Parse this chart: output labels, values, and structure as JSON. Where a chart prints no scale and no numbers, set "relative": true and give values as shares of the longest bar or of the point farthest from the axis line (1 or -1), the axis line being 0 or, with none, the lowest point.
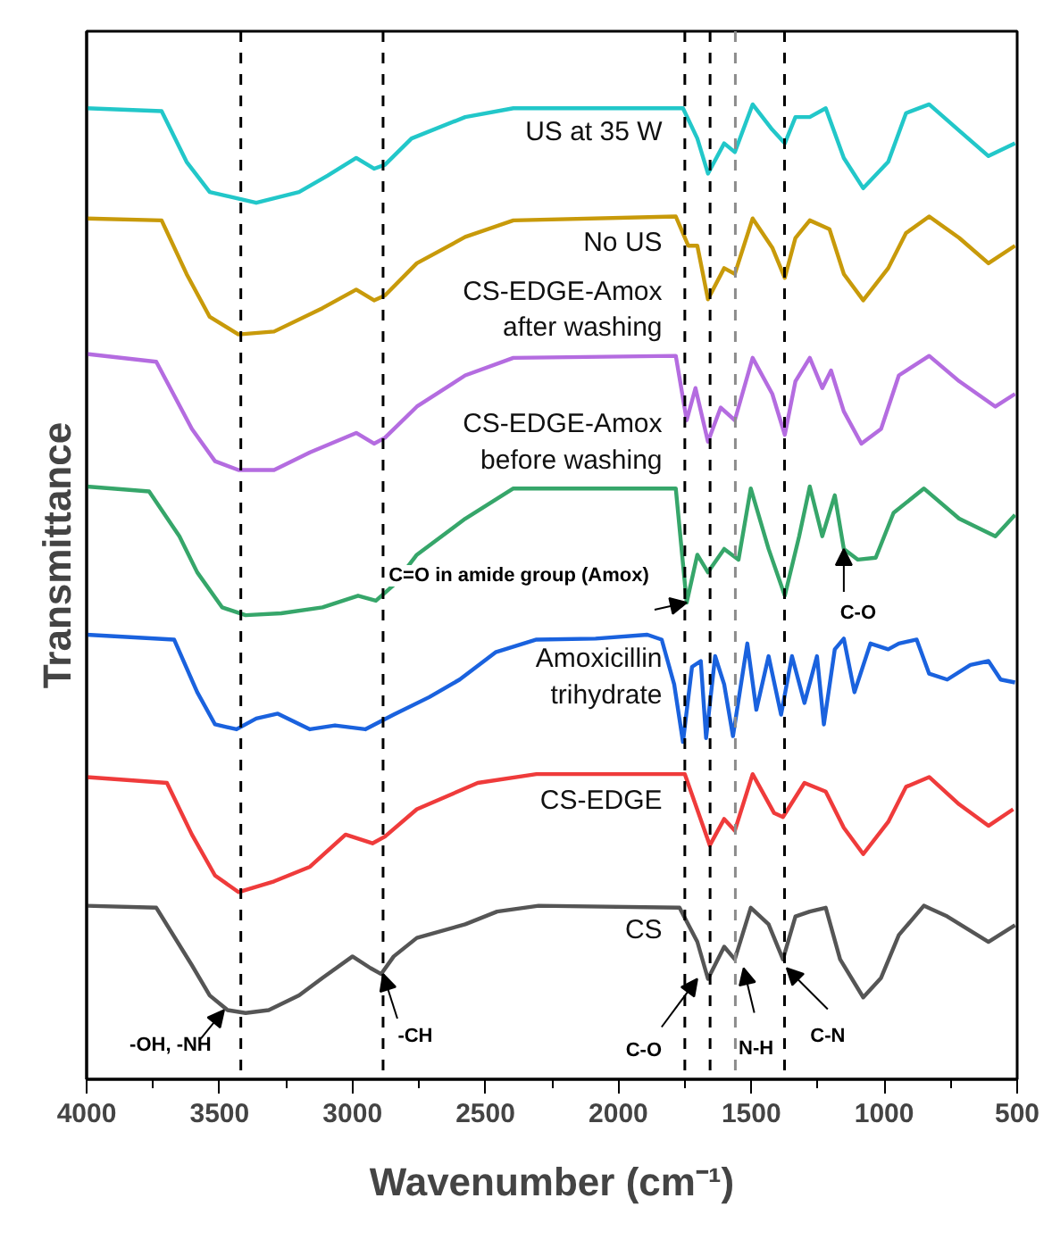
{
  "chart_data": {
    "type": "line",
    "relative": true,
    "xlabel": "Wavenumber (cm⁻¹)",
    "ylabel": "Transmittance",
    "xlim": [
      4000,
      500
    ],
    "xticks": [
      4000,
      3500,
      3000,
      2500,
      2000,
      1500,
      1000,
      500
    ],
    "grid": false,
    "legend": false,
    "ref_lines": [
      {
        "axis": "x",
        "value": 3420,
        "color": "#000000",
        "line_style": "dashed"
      },
      {
        "axis": "x",
        "value": 2885,
        "color": "#000000",
        "line_style": "dashed"
      },
      {
        "axis": "x",
        "value": 1750,
        "color": "#000000",
        "line_style": "dashed"
      },
      {
        "axis": "x",
        "value": 1655,
        "color": "#000000",
        "line_style": "dashed"
      },
      {
        "axis": "x",
        "value": 1560,
        "color": "#8c8c8c",
        "line_style": "dashed"
      },
      {
        "axis": "x",
        "value": 1375,
        "color": "#000000",
        "line_style": "dashed"
      }
    ],
    "annotations": [
      {
        "text": "-OH, -NH",
        "x": 3483,
        "y": 0.071
      },
      {
        "text": "-CH",
        "x": 2885,
        "y": 0.108
      },
      {
        "text": "C=O in amide group (Amox)",
        "x": 1743,
        "y": 0.489
      },
      {
        "text": "C-O",
        "x": 1703,
        "y": 0.103
      },
      {
        "text": "N-H",
        "x": 1529,
        "y": 0.114
      },
      {
        "text": "C-N",
        "x": 1367,
        "y": 0.114
      },
      {
        "text": "C-O",
        "x": 1152,
        "y": 0.544
      }
    ],
    "series": [
      {
        "name": "US at 35 W",
        "color": "#22c7c9",
        "x": [
          4000,
          3718,
          3624,
          3537,
          3362,
          3201,
          3093,
          2986,
          2919,
          2878,
          2778,
          2576,
          2395,
          1757,
          1703,
          1663,
          1602,
          1562,
          1495,
          1421,
          1374,
          1334,
          1280,
          1220,
          1152,
          1079,
          985,
          918,
          831,
          718,
          608,
          508
        ],
        "values": [
          0.996,
          0.993,
          0.941,
          0.91,
          0.899,
          0.91,
          0.927,
          0.945,
          0.934,
          0.938,
          0.965,
          0.987,
          0.996,
          0.996,
          0.965,
          0.929,
          0.96,
          0.951,
          1.0,
          0.974,
          0.96,
          0.987,
          0.987,
          0.996,
          0.945,
          0.914,
          0.941,
          0.991,
          1.0,
          0.973,
          0.947,
          0.96
        ]
      },
      {
        "name": "No US",
        "color": "#c89a0a",
        "x": [
          4000,
          3718,
          3624,
          3537,
          3429,
          3295,
          3113,
          2986,
          2919,
          2878,
          2758,
          2576,
          2395,
          1784,
          1737,
          1703,
          1663,
          1602,
          1562,
          1495,
          1421,
          1374,
          1334,
          1280,
          1206,
          1152,
          1079,
          985,
          918,
          831,
          718,
          608,
          508
        ],
        "values": [
          0.883,
          0.881,
          0.826,
          0.782,
          0.764,
          0.767,
          0.791,
          0.81,
          0.799,
          0.804,
          0.837,
          0.864,
          0.881,
          0.885,
          0.855,
          0.855,
          0.8,
          0.832,
          0.826,
          0.883,
          0.853,
          0.822,
          0.863,
          0.881,
          0.872,
          0.826,
          0.799,
          0.832,
          0.868,
          0.885,
          0.863,
          0.837,
          0.855
        ]
      },
      {
        "name": "CS-EDGE-Amox\nafter washing",
        "color": "#b46ce0",
        "x": [
          4000,
          3738,
          3604,
          3517,
          3429,
          3295,
          3160,
          2986,
          2919,
          2878,
          2758,
          2576,
          2395,
          1784,
          1743,
          1710,
          1663,
          1615,
          1562,
          1495,
          1421,
          1374,
          1334,
          1280,
          1233,
          1200,
          1152,
          1086,
          1012,
          945,
          831,
          718,
          582,
          508
        ],
        "values": [
          0.744,
          0.736,
          0.667,
          0.634,
          0.625,
          0.625,
          0.643,
          0.663,
          0.652,
          0.658,
          0.69,
          0.722,
          0.74,
          0.742,
          0.676,
          0.709,
          0.654,
          0.689,
          0.676,
          0.74,
          0.703,
          0.661,
          0.716,
          0.74,
          0.709,
          0.727,
          0.685,
          0.652,
          0.667,
          0.722,
          0.742,
          0.716,
          0.69,
          0.703
        ]
      },
      {
        "name": "CS-EDGE-Amox\nbefore washing",
        "color": "#36a66a",
        "x": [
          4000,
          3765,
          3651,
          3584,
          3490,
          3402,
          3268,
          3113,
          2979,
          2912,
          2845,
          2758,
          2576,
          2395,
          1784,
          1743,
          1703,
          1663,
          1602,
          1548,
          1502,
          1435,
          1374,
          1320,
          1280,
          1233,
          1186,
          1152,
          1099,
          1032,
          965,
          851,
          718,
          582,
          508
        ],
        "values": [
          0.608,
          0.603,
          0.557,
          0.52,
          0.484,
          0.476,
          0.478,
          0.484,
          0.496,
          0.491,
          0.507,
          0.538,
          0.575,
          0.606,
          0.606,
          0.489,
          0.538,
          0.52,
          0.544,
          0.533,
          0.606,
          0.544,
          0.496,
          0.557,
          0.608,
          0.557,
          0.599,
          0.544,
          0.533,
          0.535,
          0.581,
          0.606,
          0.575,
          0.557,
          0.579
        ]
      },
      {
        "name": "Amoxicillin\ntrihydrate",
        "color": "#1a62de",
        "x": [
          4000,
          3671,
          3584,
          3517,
          3436,
          3362,
          3281,
          3160,
          3066,
          2952,
          2845,
          2711,
          2597,
          2462,
          2308,
          2086,
          1891,
          1837,
          1790,
          1757,
          1723,
          1690,
          1670,
          1636,
          1602,
          1569,
          1515,
          1481,
          1435,
          1388,
          1347,
          1300,
          1253,
          1227,
          1186,
          1152,
          1112,
          1052,
          985,
          945,
          878,
          831,
          763,
          676,
          608,
          562,
          508
        ],
        "values": [
          0.456,
          0.451,
          0.397,
          0.364,
          0.359,
          0.37,
          0.375,
          0.359,
          0.363,
          0.359,
          0.374,
          0.392,
          0.41,
          0.438,
          0.451,
          0.452,
          0.456,
          0.451,
          0.405,
          0.346,
          0.423,
          0.429,
          0.35,
          0.434,
          0.405,
          0.352,
          0.447,
          0.379,
          0.434,
          0.374,
          0.434,
          0.386,
          0.434,
          0.364,
          0.441,
          0.452,
          0.397,
          0.447,
          0.441,
          0.447,
          0.451,
          0.416,
          0.41,
          0.425,
          0.429,
          0.41,
          0.407
        ]
      },
      {
        "name": "CS-EDGE",
        "color": "#ef3b3b",
        "x": [
          4000,
          3698,
          3604,
          3517,
          3429,
          3295,
          3160,
          3026,
          2925,
          2878,
          2758,
          2529,
          2308,
          1750,
          1656,
          1602,
          1562,
          1495,
          1414,
          1381,
          1300,
          1220,
          1152,
          1079,
          985,
          918,
          831,
          718,
          608,
          515
        ],
        "values": [
          0.31,
          0.304,
          0.251,
          0.209,
          0.192,
          0.203,
          0.218,
          0.251,
          0.242,
          0.249,
          0.277,
          0.304,
          0.313,
          0.313,
          0.24,
          0.267,
          0.255,
          0.313,
          0.273,
          0.269,
          0.304,
          0.295,
          0.258,
          0.231,
          0.264,
          0.3,
          0.31,
          0.282,
          0.26,
          0.277
        ]
      },
      {
        "name": "CS",
        "color": "#555555",
        "x": [
          4000,
          3738,
          3604,
          3537,
          3470,
          3402,
          3315,
          3201,
          3113,
          3000,
          2932,
          2892,
          2845,
          2758,
          2576,
          2456,
          2300,
          1770,
          1703,
          1663,
          1602,
          1562,
          1502,
          1435,
          1381,
          1334,
          1280,
          1220,
          1166,
          1079,
          1012,
          945,
          851,
          763,
          608,
          508
        ],
        "values": [
          0.178,
          0.176,
          0.117,
          0.086,
          0.071,
          0.068,
          0.071,
          0.086,
          0.104,
          0.126,
          0.114,
          0.108,
          0.126,
          0.145,
          0.159,
          0.172,
          0.178,
          0.176,
          0.141,
          0.103,
          0.136,
          0.123,
          0.176,
          0.159,
          0.123,
          0.167,
          0.172,
          0.176,
          0.123,
          0.084,
          0.104,
          0.148,
          0.178,
          0.167,
          0.141,
          0.158
        ]
      }
    ]
  }
}
